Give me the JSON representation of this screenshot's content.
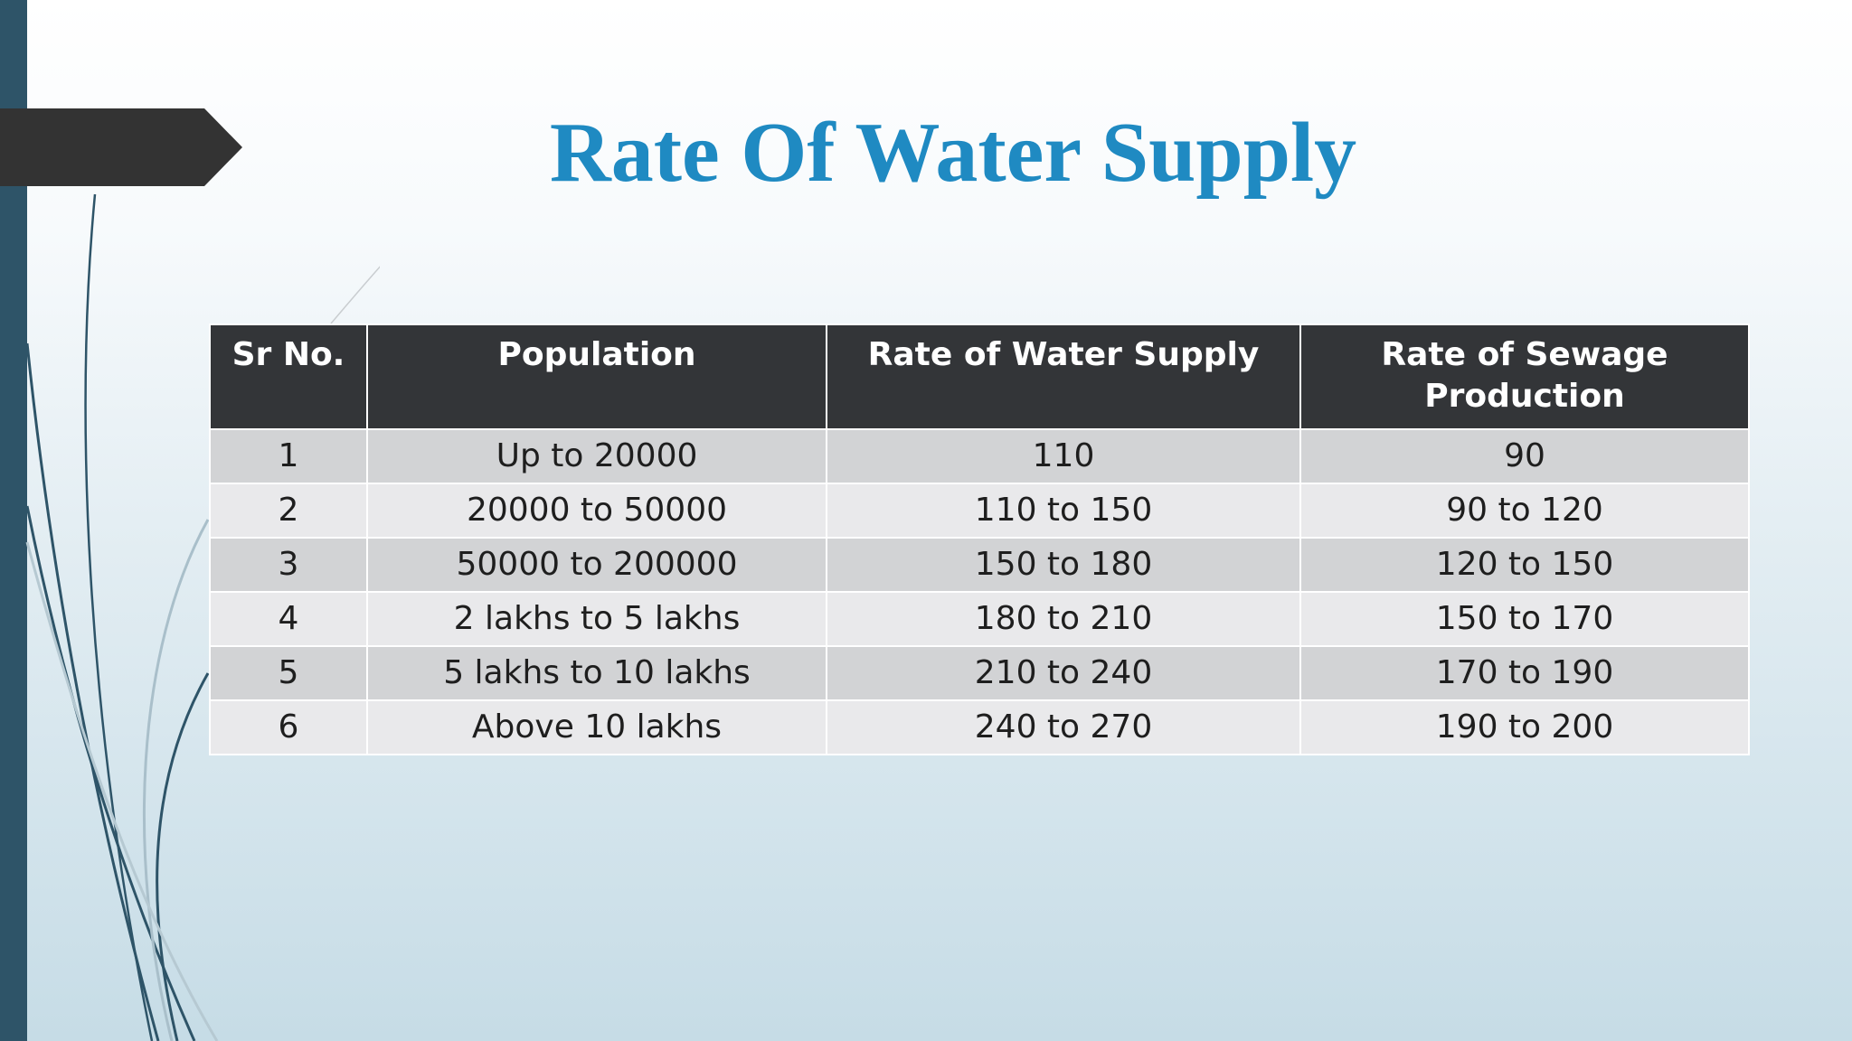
{
  "slide": {
    "title": "Rate Of Water Supply"
  },
  "table": {
    "headers": [
      "Sr No.",
      "Population",
      "Rate of Water Supply",
      "Rate of Sewage Production"
    ],
    "rows": [
      [
        "1",
        "Up to 20000",
        "110",
        "90"
      ],
      [
        "2",
        "20000 to 50000",
        "110 to 150",
        "90 to 120"
      ],
      [
        "3",
        "50000 to 200000",
        "150 to 180",
        "120 to 150"
      ],
      [
        "4",
        "2 lakhs to 5 lakhs",
        "180 to 210",
        "150 to 170"
      ],
      [
        "5",
        "5 lakhs to 10 lakhs",
        "210 to 240",
        "170 to 190"
      ],
      [
        "6",
        "Above 10 lakhs",
        "240 to 270",
        "190 to 200"
      ]
    ]
  },
  "colors": {
    "title": "#1f8ac2",
    "header_bg": "#333538",
    "row_odd": "#d2d3d5",
    "row_even": "#e9e9eb",
    "side_bar": "#2e5468",
    "arrow": "#333333"
  }
}
